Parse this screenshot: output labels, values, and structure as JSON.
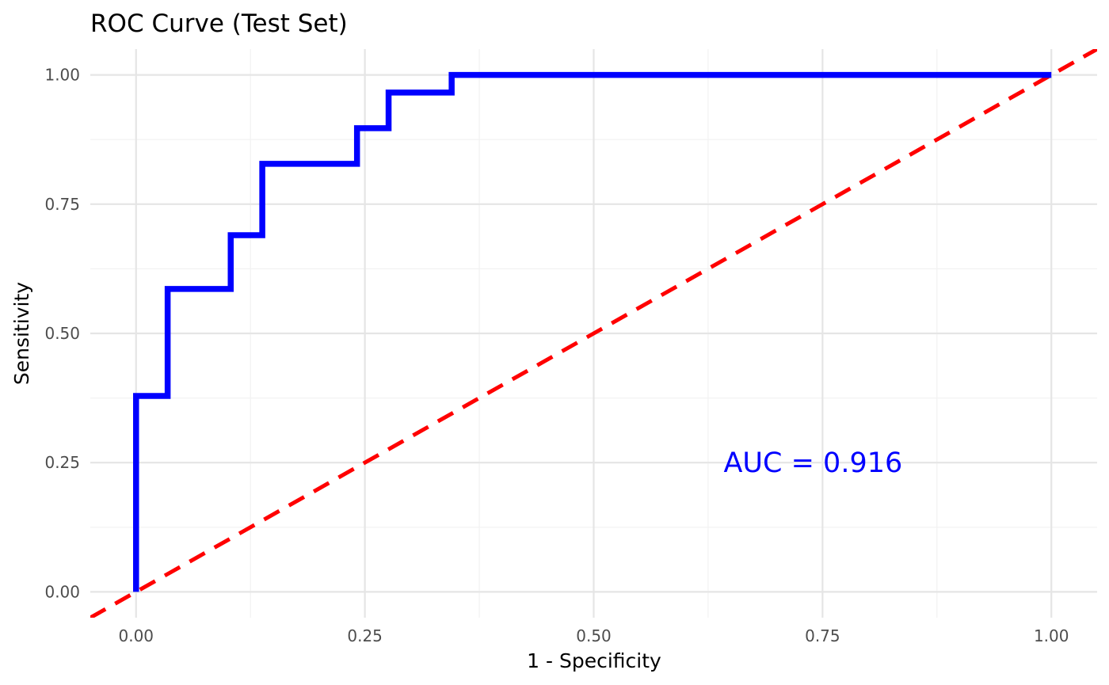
{
  "chart_data": {
    "type": "line",
    "title": "ROC Curve (Test Set)",
    "xlabel": "1 - Specificity",
    "ylabel": "Sensitivity",
    "xlim": [
      -0.05,
      1.05
    ],
    "ylim": [
      -0.05,
      1.05
    ],
    "x_ticks": [
      0,
      0.25,
      0.5,
      0.75,
      1.0
    ],
    "x_tick_labels": [
      "0.00",
      "0.25",
      "0.50",
      "0.75",
      "1.00"
    ],
    "y_ticks": [
      0,
      0.25,
      0.5,
      0.75,
      1.0
    ],
    "y_tick_labels": [
      "0.00",
      "0.25",
      "0.50",
      "0.75",
      "1.00"
    ],
    "grid": true,
    "series": [
      {
        "style": "step",
        "color": "#0000ff",
        "x": [
          0.0,
          0.0,
          0.0345,
          0.0345,
          0.1034,
          0.1034,
          0.1379,
          0.1379,
          0.2414,
          0.2414,
          0.2759,
          0.2759,
          0.3448,
          0.3448,
          1.0
        ],
        "y": [
          0.0,
          0.379,
          0.379,
          0.586,
          0.586,
          0.69,
          0.69,
          0.828,
          0.828,
          0.897,
          0.897,
          0.966,
          0.966,
          1.0,
          1.0
        ]
      },
      {
        "style": "dashed",
        "color": "#ff0000",
        "x": [
          -0.05,
          1.05
        ],
        "y": [
          -0.05,
          1.05
        ]
      }
    ],
    "annotations": [
      {
        "text": "AUC = 0.916",
        "x": 0.75,
        "y": 0.25,
        "color": "#0000ff"
      }
    ]
  }
}
